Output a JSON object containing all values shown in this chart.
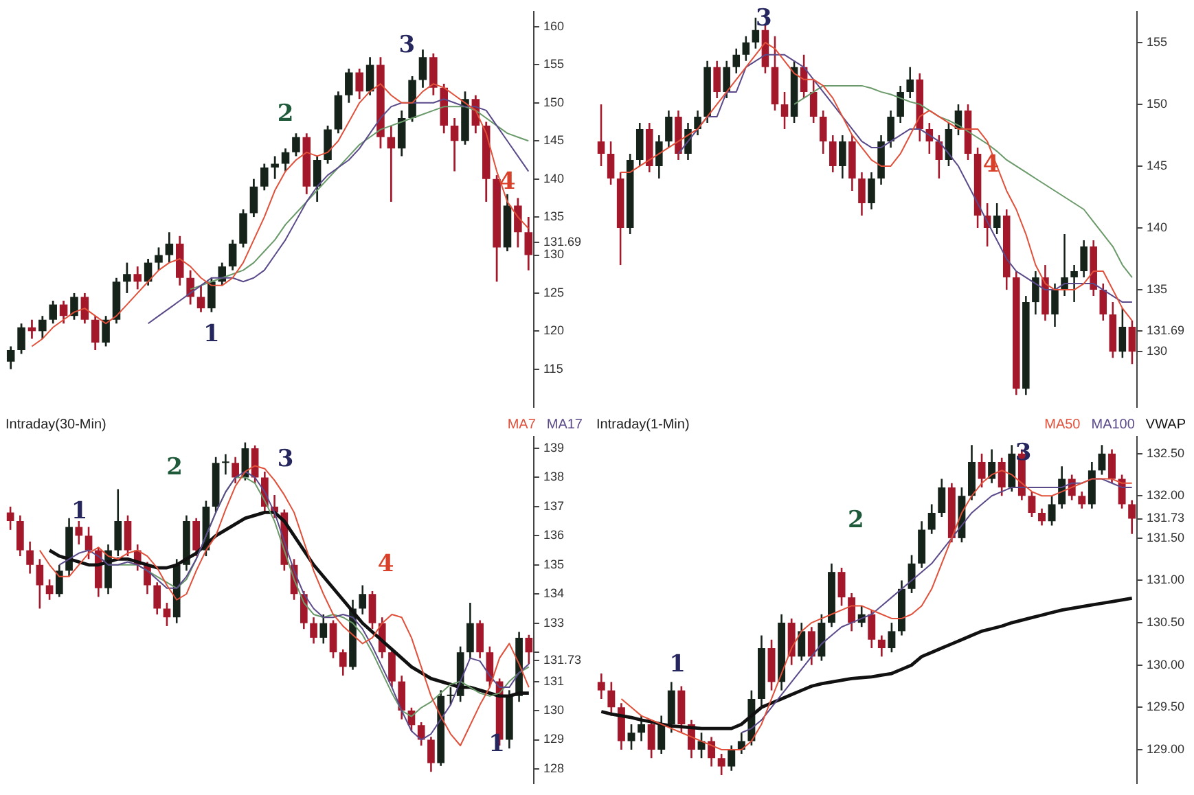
{
  "chart_data": [
    {
      "type": "candlestick",
      "categories": [
        null,
        null,
        null,
        null,
        null,
        null,
        null,
        null,
        null,
        null,
        null,
        null,
        null,
        null,
        null,
        null,
        null,
        null,
        null,
        null,
        null,
        null,
        null,
        null,
        null,
        null,
        null,
        null,
        null,
        null,
        null,
        null,
        null,
        null,
        null,
        null,
        null,
        null,
        null,
        null,
        null,
        null,
        null,
        null,
        null,
        null,
        null,
        null,
        null,
        null
      ],
      "ohlc": [
        [
          116,
          118,
          115,
          117.5
        ],
        [
          117.5,
          121,
          117,
          120.5
        ],
        [
          120.5,
          121.5,
          119,
          120
        ],
        [
          120,
          122,
          119,
          121.5
        ],
        [
          121.5,
          124,
          121,
          123.5
        ],
        [
          123.5,
          124,
          121,
          122
        ],
        [
          122,
          125,
          121.5,
          124.5
        ],
        [
          124.5,
          125,
          121,
          121.5
        ],
        [
          121.5,
          122,
          117.5,
          118.5
        ],
        [
          118.5,
          122,
          118,
          121.5
        ],
        [
          121.5,
          127,
          121,
          126.5
        ],
        [
          126.5,
          129,
          125,
          127.5
        ],
        [
          127.5,
          128.5,
          125.5,
          126.5
        ],
        [
          126.5,
          129.5,
          126,
          129
        ],
        [
          129,
          131,
          128,
          130
        ],
        [
          130,
          133,
          129,
          131.5
        ],
        [
          131.5,
          132.5,
          126,
          127
        ],
        [
          127,
          128,
          123.5,
          124.5
        ],
        [
          124.5,
          126,
          122.5,
          123
        ],
        [
          123,
          127,
          122.5,
          126.5
        ],
        [
          126.5,
          129,
          126,
          128.5
        ],
        [
          128.5,
          132,
          128,
          131.5
        ],
        [
          131.5,
          136,
          131,
          135.5
        ],
        [
          135.5,
          140,
          135,
          139
        ],
        [
          139,
          142,
          138.5,
          141.5
        ],
        [
          141.5,
          143,
          140,
          142
        ],
        [
          142,
          144,
          141,
          143.5
        ],
        [
          143.5,
          146,
          143,
          145.5
        ],
        [
          145.5,
          146,
          138,
          139
        ],
        [
          139,
          143,
          137,
          142.5
        ],
        [
          142.5,
          147,
          142,
          146.5
        ],
        [
          146.5,
          151.5,
          146,
          151
        ],
        [
          151,
          154.5,
          150,
          154
        ],
        [
          154,
          154.5,
          150.5,
          151.5
        ],
        [
          151.5,
          156,
          151,
          155
        ],
        [
          155,
          156,
          144,
          145.5
        ],
        [
          145.5,
          147,
          137,
          144
        ],
        [
          144,
          149,
          143,
          148
        ],
        [
          148,
          153.5,
          147.5,
          153
        ],
        [
          153,
          157,
          152,
          156
        ],
        [
          156,
          156.5,
          151,
          152
        ],
        [
          152,
          152.5,
          146,
          147
        ],
        [
          147,
          148,
          141,
          145
        ],
        [
          145,
          151.5,
          144.5,
          150.5
        ],
        [
          150.5,
          151,
          146,
          147
        ],
        [
          147,
          147.5,
          137,
          140
        ],
        [
          140,
          140.5,
          126.5,
          131
        ],
        [
          131,
          138,
          130.5,
          136.5
        ],
        [
          136.5,
          137.5,
          131,
          133
        ],
        [
          133,
          135,
          128,
          130
        ]
      ],
      "series": [
        {
          "type": "line",
          "color": "#e0503a",
          "values": [
            null,
            null,
            118,
            119,
            120.5,
            121.5,
            122.5,
            123,
            122,
            121,
            122,
            123.5,
            125,
            126.5,
            128,
            129,
            129.5,
            128.5,
            127,
            126,
            126,
            127,
            129,
            132,
            135,
            138.5,
            141,
            142.5,
            143.5,
            143,
            143.5,
            145,
            147.5,
            150,
            151.5,
            152.5,
            151,
            150,
            150,
            151.5,
            152.5,
            152,
            151,
            150,
            149,
            146,
            141,
            137,
            135,
            133.5
          ]
        },
        {
          "type": "line",
          "color": "#5a4a8a",
          "values": [
            null,
            null,
            null,
            null,
            null,
            null,
            null,
            null,
            null,
            null,
            null,
            null,
            null,
            121,
            122,
            123,
            124,
            125,
            126,
            127,
            127,
            127,
            126.5,
            127,
            128,
            130,
            132,
            134.5,
            137,
            139,
            140.5,
            141.5,
            142.5,
            144,
            146,
            148,
            149.5,
            150,
            150,
            150,
            150,
            150.5,
            150,
            149.5,
            149.5,
            149,
            147,
            145,
            143,
            141
          ]
        },
        {
          "type": "line",
          "color": "#6a9a6a",
          "values": [
            null,
            null,
            null,
            null,
            null,
            null,
            null,
            null,
            null,
            null,
            null,
            null,
            null,
            null,
            null,
            null,
            null,
            125.5,
            126,
            126.5,
            127,
            127.5,
            128,
            129,
            130.5,
            132,
            134,
            135.5,
            137,
            138.5,
            140,
            141.5,
            143,
            144.5,
            145.5,
            146.5,
            147,
            147.5,
            148,
            148.5,
            149,
            149.5,
            149.5,
            149.5,
            149,
            148,
            147,
            146,
            145.5,
            145
          ]
        }
      ],
      "ylim": [
        110,
        162
      ],
      "yticks": [
        115,
        120,
        125,
        130,
        {
          "value": 131.69,
          "label": "131.69"
        },
        135,
        140,
        145,
        150,
        155,
        160
      ],
      "tick_labels": "y",
      "annotations": [
        "1",
        "2",
        "3",
        "4"
      ]
    },
    {
      "type": "candlestick",
      "categories": [
        null,
        null,
        null,
        null,
        null,
        null,
        null,
        null,
        null,
        null,
        null,
        null,
        null,
        null,
        null,
        null,
        null,
        null,
        null,
        null,
        null,
        null,
        null,
        null,
        null,
        null,
        null,
        null,
        null,
        null,
        null,
        null,
        null,
        null,
        null,
        null,
        null,
        null,
        null,
        null,
        null,
        null,
        null,
        null,
        null,
        null,
        null,
        null,
        null,
        null,
        null,
        null,
        null,
        null,
        null,
        null
      ],
      "ohlc": [
        [
          147,
          150,
          145,
          146
        ],
        [
          146,
          147,
          143.5,
          144
        ],
        [
          144,
          144.5,
          137,
          140
        ],
        [
          140,
          146,
          139.5,
          145.5
        ],
        [
          145.5,
          148.5,
          145,
          148
        ],
        [
          148,
          148.5,
          144.5,
          145
        ],
        [
          145,
          147.5,
          144,
          147
        ],
        [
          147,
          149.5,
          146.5,
          149
        ],
        [
          149,
          149.5,
          145.5,
          146
        ],
        [
          146,
          148.5,
          145.5,
          148
        ],
        [
          148,
          149.5,
          147.5,
          149
        ],
        [
          149,
          153.5,
          148.5,
          153
        ],
        [
          153,
          153.5,
          150.5,
          151
        ],
        [
          151,
          153.5,
          150.5,
          153
        ],
        [
          153,
          154.5,
          152.5,
          154
        ],
        [
          154,
          155.5,
          153.5,
          155
        ],
        [
          155,
          157,
          154.5,
          156
        ],
        [
          156,
          156.5,
          152.5,
          153
        ],
        [
          153,
          155.5,
          149.5,
          150
        ],
        [
          150,
          151,
          148,
          149
        ],
        [
          149,
          153.5,
          148.5,
          153
        ],
        [
          153,
          154,
          150.5,
          151
        ],
        [
          151,
          152,
          148.5,
          149
        ],
        [
          149,
          149.5,
          146,
          147
        ],
        [
          147,
          147.5,
          144.5,
          145
        ],
        [
          145,
          147.5,
          144,
          147
        ],
        [
          147,
          147.5,
          143,
          144
        ],
        [
          144,
          144.5,
          141,
          142
        ],
        [
          142,
          144.5,
          141.5,
          144
        ],
        [
          144,
          147.5,
          143.5,
          147
        ],
        [
          147,
          149.5,
          146.5,
          149
        ],
        [
          149,
          151.5,
          148.5,
          151
        ],
        [
          151,
          153,
          150.5,
          152
        ],
        [
          152,
          152.5,
          147,
          148
        ],
        [
          148,
          148.5,
          146,
          147
        ],
        [
          147,
          147.5,
          144,
          145.5
        ],
        [
          145.5,
          148.5,
          145,
          148
        ],
        [
          148,
          150,
          147.5,
          149.5
        ],
        [
          149.5,
          150,
          145.5,
          146
        ],
        [
          146,
          146.5,
          140,
          141
        ],
        [
          141,
          142,
          138.5,
          140
        ],
        [
          140,
          142,
          139.5,
          141
        ],
        [
          141,
          141.5,
          135,
          136
        ],
        [
          136,
          136.5,
          126.5,
          127
        ],
        [
          127,
          134.5,
          126.5,
          134
        ],
        [
          134,
          136.5,
          133,
          136
        ],
        [
          136,
          137,
          132.5,
          133
        ],
        [
          133,
          135.5,
          132,
          135
        ],
        [
          135,
          139.5,
          134.5,
          136
        ],
        [
          136,
          137,
          134,
          136.5
        ],
        [
          136.5,
          139,
          136,
          138.5
        ],
        [
          138.5,
          139,
          134.5,
          135
        ],
        [
          135,
          135.5,
          132.5,
          133
        ],
        [
          133,
          134,
          129.5,
          130
        ],
        [
          130,
          133.5,
          129.5,
          132
        ],
        [
          132,
          132.5,
          129,
          130
        ]
      ],
      "series": [
        {
          "type": "line",
          "color": "#e0503a",
          "values": [
            null,
            null,
            144.5,
            144.5,
            145,
            145.5,
            146,
            146.5,
            147,
            147.5,
            148,
            149,
            150,
            151,
            152,
            153,
            154,
            155,
            154.5,
            153.5,
            152.5,
            152,
            152,
            151.5,
            150.5,
            149,
            147.5,
            146.5,
            145.5,
            145,
            145,
            146,
            147.5,
            149,
            149.5,
            149,
            148.5,
            148,
            148,
            148,
            147,
            145,
            143,
            141.5,
            139.5,
            137,
            135.5,
            135,
            135,
            135,
            135.5,
            136.5,
            136.5,
            135,
            133.5,
            132.5
          ]
        },
        {
          "type": "line",
          "color": "#5a4a8a",
          "values": [
            null,
            null,
            null,
            null,
            null,
            null,
            null,
            null,
            146,
            147,
            148,
            149,
            149,
            151,
            151,
            153,
            153.5,
            154,
            154,
            154,
            153.5,
            153,
            152,
            151,
            150,
            149,
            148,
            147,
            146.5,
            146.5,
            147,
            147.5,
            148,
            148,
            147.5,
            147,
            146,
            145,
            143.5,
            142,
            140.5,
            139,
            137.5,
            136.5,
            136,
            135.5,
            135,
            135,
            135.5,
            135.5,
            135.5,
            135.5,
            135,
            134.5,
            134,
            134
          ]
        },
        {
          "type": "line",
          "color": "#6a9a6a",
          "values": [
            null,
            null,
            null,
            null,
            null,
            null,
            null,
            null,
            null,
            null,
            null,
            null,
            null,
            null,
            null,
            null,
            null,
            null,
            null,
            null,
            150,
            150.5,
            151,
            151.5,
            151.5,
            151.5,
            151.5,
            151.5,
            151.3,
            151,
            150.8,
            150.5,
            150.2,
            150,
            149.5,
            149,
            148.7,
            148.3,
            147.8,
            147.3,
            146.8,
            146.2,
            145.5,
            145,
            144.5,
            144,
            143.5,
            143,
            142.5,
            142,
            141.5,
            140.5,
            139.5,
            138.5,
            137,
            136
          ]
        }
      ],
      "ylim": [
        125.5,
        157.5
      ],
      "yticks": [
        130,
        {
          "value": 131.69,
          "label": "131.69"
        },
        135,
        140,
        145,
        150,
        155
      ],
      "tick_labels": "y",
      "annotations": [
        "3",
        "4"
      ]
    },
    {
      "type": "candlestick",
      "title": "Intraday(30-Min)",
      "legend": "top right",
      "categories": [
        null,
        null,
        null,
        null,
        null,
        null,
        null,
        null,
        null,
        null,
        null,
        null,
        null,
        null,
        null,
        null,
        null,
        null,
        null,
        null,
        null,
        null,
        null,
        null,
        null,
        null,
        null,
        null,
        null,
        null,
        null,
        null,
        null,
        null,
        null,
        null,
        null,
        null,
        null,
        null,
        null,
        null,
        null,
        null,
        null,
        null,
        null,
        null,
        null,
        null,
        null,
        null,
        null,
        null
      ],
      "ohlc": [
        [
          136.8,
          137,
          136.2,
          136.5
        ],
        [
          136.5,
          136.7,
          135.3,
          135.5
        ],
        [
          135.5,
          135.8,
          134.7,
          135
        ],
        [
          135,
          135.2,
          133.5,
          134.3
        ],
        [
          134.3,
          134.5,
          133.8,
          134
        ],
        [
          134,
          135,
          133.9,
          134.8
        ],
        [
          134.8,
          136.6,
          134.6,
          136.3
        ],
        [
          136.3,
          136.5,
          135.7,
          136
        ],
        [
          136,
          136.3,
          135.2,
          135.5
        ],
        [
          135.5,
          135.6,
          133.9,
          134.2
        ],
        [
          134.2,
          135.7,
          134,
          135.5
        ],
        [
          135.5,
          137.6,
          135.3,
          136.5
        ],
        [
          136.5,
          136.7,
          135.3,
          135.5
        ],
        [
          135.5,
          135.7,
          134.8,
          135
        ],
        [
          135,
          135.1,
          134,
          134.3
        ],
        [
          134.3,
          134.4,
          133.3,
          133.5
        ],
        [
          133.5,
          133.7,
          132.9,
          133.2
        ],
        [
          133.2,
          135.2,
          133,
          135
        ],
        [
          135,
          136.7,
          134.8,
          136.5
        ],
        [
          136.5,
          136.6,
          135.3,
          135.5
        ],
        [
          135.5,
          137.2,
          135.3,
          137
        ],
        [
          137,
          138.7,
          136.8,
          138.5
        ],
        [
          138.5,
          138.8,
          138.1,
          138.5
        ],
        [
          138.5,
          138.7,
          137.8,
          138
        ],
        [
          138,
          139.2,
          137.9,
          139
        ],
        [
          139,
          139.1,
          137.8,
          138
        ],
        [
          138,
          138.2,
          136.8,
          137
        ],
        [
          137,
          137.4,
          136.6,
          136.8
        ],
        [
          136.8,
          136.9,
          134.8,
          135
        ],
        [
          135,
          135.2,
          133.8,
          134
        ],
        [
          134,
          134.1,
          132.8,
          133
        ],
        [
          133,
          133.2,
          132.3,
          132.5
        ],
        [
          132.5,
          133.3,
          132.3,
          133
        ],
        [
          133,
          133.1,
          131.8,
          132
        ],
        [
          132,
          132.1,
          131.2,
          131.5
        ],
        [
          131.5,
          133.8,
          131.4,
          133.5
        ],
        [
          133.5,
          134.3,
          133.3,
          134
        ],
        [
          134,
          134.1,
          132.8,
          133
        ],
        [
          133,
          133.2,
          131.8,
          132
        ],
        [
          132,
          132.1,
          130.8,
          131
        ],
        [
          131,
          131.2,
          129.7,
          130
        ],
        [
          130,
          130.1,
          129.3,
          129.5
        ],
        [
          129.5,
          129.6,
          128.8,
          129
        ],
        [
          129,
          129.1,
          127.9,
          128.2
        ],
        [
          128.2,
          130.7,
          128.1,
          130.5
        ],
        [
          130.5,
          130.8,
          130.2,
          130.5
        ],
        [
          130.5,
          132.2,
          130.3,
          132
        ],
        [
          132,
          133.7,
          131.8,
          133
        ],
        [
          133,
          133.1,
          131.8,
          132
        ],
        [
          132,
          132.2,
          130.8,
          131
        ],
        [
          131,
          131.1,
          128.8,
          129
        ],
        [
          129,
          130.7,
          128.7,
          130.5
        ],
        [
          130.5,
          132.7,
          130.3,
          132.5
        ],
        [
          132.5,
          132.6,
          131.6,
          132
        ]
      ],
      "series": [
        {
          "type": "line",
          "name": "MA7",
          "color": "#e0503a",
          "values": [
            null,
            null,
            null,
            135.5,
            135,
            134.6,
            134.6,
            135,
            135.4,
            135.6,
            135.3,
            135.2,
            135.4,
            135.5,
            135.3,
            134.9,
            134.3,
            133.8,
            134,
            134.8,
            135.5,
            136,
            136.9,
            137.7,
            138.2,
            138.4,
            138.3,
            137.9,
            137.4,
            136.8,
            135.8,
            134.8,
            134,
            133.3,
            132.9,
            132.6,
            132.3,
            132.5,
            133,
            133.3,
            133.2,
            132.5,
            131.5,
            130.5,
            129.8,
            129.2,
            128.8,
            129.5,
            130.2,
            130.8,
            131.8,
            132.3,
            131.6,
            130.8
          ]
        },
        {
          "type": "line",
          "name": "MA17",
          "color": "#5a4a8a",
          "values": [
            null,
            null,
            null,
            null,
            null,
            135,
            135.2,
            135.4,
            135.5,
            135.3,
            135,
            135,
            135.1,
            135,
            134.8,
            134.5,
            134.2,
            134.2,
            134.6,
            135.2,
            136,
            136.8,
            137.5,
            138,
            138.2,
            138,
            137.5,
            136.8,
            135.8,
            134.8,
            134,
            133.5,
            133.2,
            133.2,
            133.3,
            133.2,
            132.8,
            132.2,
            131.5,
            130.8,
            130,
            129.3,
            129,
            129.2,
            129.7,
            130.2,
            131,
            131.8,
            131.7,
            131.2,
            130.8,
            130.8,
            131.3,
            131.6
          ]
        },
        {
          "type": "line",
          "color": "#6a9a6a",
          "values": [
            null,
            null,
            null,
            null,
            null,
            null,
            null,
            null,
            null,
            null,
            135,
            135,
            135,
            135,
            134.8,
            134.6,
            134.4,
            134.2,
            134.5,
            135.2,
            136,
            136.8,
            137.5,
            138,
            138,
            137.8,
            137.2,
            136.5,
            135.5,
            134.5,
            133.7,
            133.3,
            133.2,
            133.3,
            133.2,
            133,
            132.6,
            132,
            131.3,
            130.6,
            130,
            129.8,
            130.1,
            130.3,
            130.6,
            130.9,
            131,
            130.8,
            130.6,
            130.5,
            130.6,
            131,
            131.3,
            131.5
          ]
        },
        {
          "type": "line",
          "color": "#111111",
          "values": [
            null,
            null,
            null,
            null,
            135.5,
            135.3,
            135.2,
            135.1,
            135,
            135,
            135.1,
            135.2,
            135.2,
            135.1,
            135,
            134.9,
            134.9,
            135,
            135.2,
            135.4,
            135.7,
            136,
            136.2,
            136.4,
            136.6,
            136.7,
            136.8,
            136.8,
            136.5,
            136,
            135.5,
            135,
            134.6,
            134.2,
            133.8,
            133.4,
            133,
            132.7,
            132.4,
            132.1,
            131.8,
            131.5,
            131.3,
            131.1,
            131,
            130.9,
            130.8,
            130.8,
            130.7,
            130.6,
            130.5,
            130.5,
            130.6,
            130.6
          ]
        }
      ],
      "ylim": [
        127.5,
        139.4
      ],
      "yticks": [
        128,
        129,
        130,
        131,
        {
          "value": 131.73,
          "label": "131.73"
        },
        {
          "value": 132,
          "label": null
        },
        133,
        134,
        135,
        136,
        137,
        138,
        139
      ],
      "tick_labels": "y",
      "annotations": [
        "1",
        "2",
        "3",
        "4",
        "1"
      ]
    },
    {
      "type": "candlestick",
      "title": "Intraday(1-Min)",
      "legend": "top right",
      "categories": [
        null,
        null,
        null,
        null,
        null,
        null,
        null,
        null,
        null,
        null,
        null,
        null,
        null,
        null,
        null,
        null,
        null,
        null,
        null,
        null,
        null,
        null,
        null,
        null,
        null,
        null,
        null,
        null,
        null,
        null,
        null,
        null,
        null,
        null,
        null,
        null,
        null,
        null,
        null,
        null,
        null,
        null,
        null,
        null,
        null,
        null,
        null,
        null,
        null,
        null,
        null,
        null,
        null,
        null
      ],
      "ohlc": [
        [
          129.8,
          129.9,
          129.6,
          129.7
        ],
        [
          129.7,
          129.8,
          129.4,
          129.5
        ],
        [
          129.5,
          129.55,
          129,
          129.1
        ],
        [
          129.1,
          129.3,
          129,
          129.2
        ],
        [
          129.2,
          129.4,
          129.1,
          129.3
        ],
        [
          129.3,
          129.35,
          128.9,
          129
        ],
        [
          129,
          129.4,
          128.95,
          129.3
        ],
        [
          129.3,
          129.8,
          129.2,
          129.7
        ],
        [
          129.7,
          129.75,
          129.2,
          129.3
        ],
        [
          129.3,
          129.35,
          128.9,
          129
        ],
        [
          129,
          129.2,
          128.9,
          129.1
        ],
        [
          129.1,
          129.15,
          128.8,
          128.9
        ],
        [
          128.9,
          128.95,
          128.7,
          128.8
        ],
        [
          128.8,
          129.05,
          128.75,
          129
        ],
        [
          129,
          129.2,
          128.95,
          129.1
        ],
        [
          129.1,
          129.7,
          129.05,
          129.6
        ],
        [
          129.6,
          130.35,
          129.5,
          130.2
        ],
        [
          130.2,
          130.3,
          129.7,
          129.8
        ],
        [
          129.8,
          130.6,
          129.7,
          130.5
        ],
        [
          130.5,
          130.55,
          130,
          130.1
        ],
        [
          130.1,
          130.5,
          130.05,
          130.4
        ],
        [
          130.4,
          130.45,
          130,
          130.1
        ],
        [
          130.1,
          130.6,
          130.05,
          130.5
        ],
        [
          130.5,
          131.2,
          130.45,
          131.1
        ],
        [
          131.1,
          131.15,
          130.7,
          130.8
        ],
        [
          130.8,
          130.85,
          130.4,
          130.5
        ],
        [
          130.5,
          130.7,
          130.45,
          130.6
        ],
        [
          130.6,
          130.65,
          130.2,
          130.3
        ],
        [
          130.3,
          130.35,
          130.1,
          130.2
        ],
        [
          130.2,
          130.5,
          130.15,
          130.4
        ],
        [
          130.4,
          131,
          130.35,
          130.9
        ],
        [
          130.9,
          131.3,
          130.85,
          131.2
        ],
        [
          131.2,
          131.7,
          131.15,
          131.6
        ],
        [
          131.6,
          131.9,
          131.55,
          131.8
        ],
        [
          131.8,
          132.2,
          131.75,
          132.1
        ],
        [
          132.1,
          132.15,
          131.45,
          131.5
        ],
        [
          131.5,
          132.1,
          131.45,
          132
        ],
        [
          132,
          132.6,
          131.95,
          132.4
        ],
        [
          132.4,
          132.5,
          132.1,
          132.2
        ],
        [
          132.2,
          132.55,
          132.15,
          132.4
        ],
        [
          132.4,
          132.45,
          132,
          132.1
        ],
        [
          132.1,
          132.6,
          132.05,
          132.5
        ],
        [
          132.5,
          132.55,
          131.95,
          132
        ],
        [
          132,
          132.05,
          131.75,
          131.8
        ],
        [
          131.8,
          131.85,
          131.65,
          131.7
        ],
        [
          131.7,
          132,
          131.65,
          131.9
        ],
        [
          131.9,
          132.35,
          131.85,
          132.2
        ],
        [
          132.2,
          132.25,
          131.95,
          132
        ],
        [
          132,
          132.05,
          131.85,
          131.9
        ],
        [
          131.9,
          132.4,
          131.85,
          132.3
        ],
        [
          132.3,
          132.6,
          132.25,
          132.5
        ],
        [
          132.5,
          132.55,
          132.15,
          132.2
        ],
        [
          132.2,
          132.25,
          131.85,
          131.9
        ],
        [
          131.9,
          131.95,
          131.55,
          131.73
        ]
      ],
      "series": [
        {
          "type": "line",
          "name": "MA50",
          "color": "#e0503a",
          "values": [
            null,
            null,
            129.6,
            129.5,
            129.4,
            129.35,
            129.3,
            129.25,
            129.2,
            129.15,
            129.1,
            129.05,
            129,
            129,
            129,
            129.1,
            129.3,
            129.6,
            129.9,
            130.2,
            130.4,
            130.5,
            130.55,
            130.6,
            130.65,
            130.7,
            130.7,
            130.65,
            130.6,
            130.55,
            130.55,
            130.6,
            130.7,
            130.9,
            131.2,
            131.5,
            131.8,
            132,
            132.15,
            132.25,
            132.3,
            132.25,
            132.15,
            132.05,
            132,
            132,
            132.05,
            132.1,
            132.15,
            132.2,
            132.2,
            132.2,
            132.15,
            132.15
          ]
        },
        {
          "type": "line",
          "name": "MA100",
          "color": "#5a4a8a",
          "values": [
            null,
            null,
            null,
            null,
            null,
            null,
            null,
            null,
            null,
            null,
            null,
            null,
            null,
            null,
            129.2,
            129.25,
            129.35,
            129.5,
            129.65,
            129.8,
            129.95,
            130.1,
            130.25,
            130.35,
            130.45,
            130.5,
            130.55,
            130.6,
            130.7,
            130.8,
            130.9,
            131,
            131.1,
            131.2,
            131.35,
            131.5,
            131.65,
            131.8,
            131.9,
            132,
            132.05,
            132.1,
            132.1,
            132.1,
            132.1,
            132.1,
            132.1,
            132.15,
            132.15,
            132.2,
            132.2,
            132.15,
            132.1,
            132.1
          ]
        },
        {
          "type": "line",
          "name": "VWAP",
          "color": "#111111",
          "values": [
            129.45,
            129.42,
            129.4,
            129.38,
            129.35,
            129.33,
            129.3,
            129.28,
            129.27,
            129.26,
            129.25,
            129.25,
            129.25,
            129.25,
            129.3,
            129.4,
            129.5,
            129.55,
            129.6,
            129.65,
            129.7,
            129.75,
            129.78,
            129.8,
            129.82,
            129.84,
            129.85,
            129.86,
            129.88,
            129.9,
            129.95,
            130,
            130.1,
            130.15,
            130.2,
            130.25,
            130.3,
            130.35,
            130.4,
            130.43,
            130.46,
            130.5,
            130.53,
            130.56,
            130.59,
            130.62,
            130.65,
            130.67,
            130.69,
            130.71,
            130.73,
            130.75,
            130.77,
            130.79
          ]
        }
      ],
      "ylim": [
        128.6,
        132.7
      ],
      "yticks": [
        {
          "value": 129,
          "label": "129.00"
        },
        {
          "value": 129.5,
          "label": "129.50"
        },
        {
          "value": 130,
          "label": "130.00"
        },
        {
          "value": 130.5,
          "label": "130.50"
        },
        {
          "value": 131,
          "label": "131.00"
        },
        {
          "value": 131.5,
          "label": "131.50"
        },
        {
          "value": 131.73,
          "label": "131.73"
        },
        {
          "value": 132,
          "label": "132.00"
        },
        {
          "value": 132.5,
          "label": "132.50"
        }
      ],
      "tick_labels": "y",
      "annotations": [
        "1",
        "2",
        "3"
      ]
    }
  ]
}
